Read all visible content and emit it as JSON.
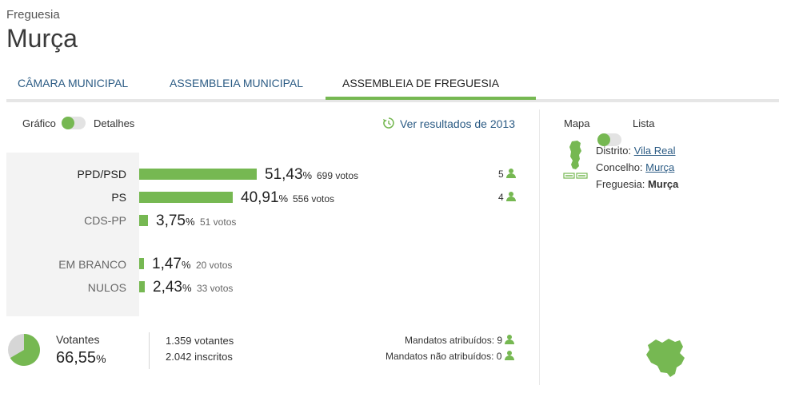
{
  "header": {
    "breadcrumb": "Freguesia",
    "title": "Murça"
  },
  "tabs": [
    {
      "label": "CÂMARA MUNICIPAL",
      "active": false
    },
    {
      "label": "ASSEMBLEIA MUNICIPAL",
      "active": false
    },
    {
      "label": "ASSEMBLEIA DE FREGUESIA",
      "active": true
    }
  ],
  "view_toggle": {
    "left": "Gráfico",
    "right": "Detalhes"
  },
  "history_link": "Ver resultados de 2013",
  "results": [
    {
      "party": "PPD/PSD",
      "percent": "51,43",
      "percent_value": 51.43,
      "votes": "699 votos",
      "mandates": "5",
      "highlight": true
    },
    {
      "party": "PS",
      "percent": "40,91",
      "percent_value": 40.91,
      "votes": "556 votos",
      "mandates": "4",
      "highlight": true
    },
    {
      "party": "CDS-PP",
      "percent": "3,75",
      "percent_value": 3.75,
      "votes": "51 votos",
      "mandates": "",
      "highlight": false
    },
    {
      "party": "EM BRANCO",
      "percent": "1,47",
      "percent_value": 1.47,
      "votes": "20 votos",
      "mandates": "",
      "highlight": false
    },
    {
      "party": "NULOS",
      "percent": "2,43",
      "percent_value": 2.43,
      "votes": "33 votos",
      "mandates": "",
      "highlight": false
    }
  ],
  "percent_sign": "%",
  "summary": {
    "turnout_label": "Votantes",
    "turnout_percent": "66,55",
    "turnout_value": 66.55,
    "voters": "1.359 votantes",
    "registered": "2.042 inscritos",
    "mandates_assigned": "Mandatos atribuídos: 9",
    "mandates_unassigned": "Mandatos não atribuídos: 0"
  },
  "map_panel": {
    "toggle_left": "Mapa",
    "toggle_right": "Lista",
    "district_label": "Distrito:",
    "district_value": "Vila Real",
    "county_label": "Concelho:",
    "county_value": "Murça",
    "parish_label": "Freguesia:",
    "parish_value": "Murça"
  },
  "colors": {
    "accent": "#76b852",
    "link": "#2b5b84",
    "panel_gray": "#f3f3f3"
  }
}
